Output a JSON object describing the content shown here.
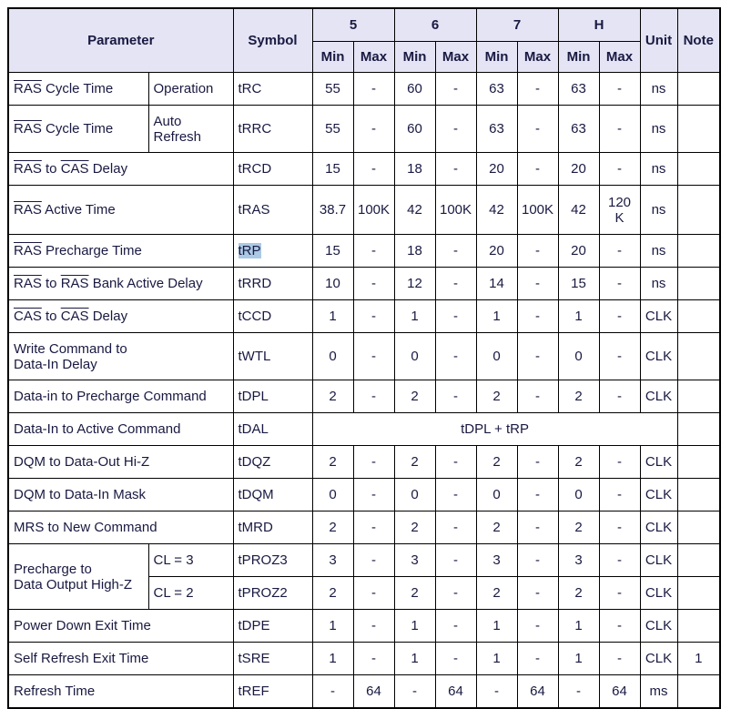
{
  "colors": {
    "header_bg": "#e4e4f4",
    "text": "#191942",
    "selection_highlight": "#aac9e5",
    "border": "#000000"
  },
  "table": {
    "headers": {
      "parameter": "Parameter",
      "symbol": "Symbol",
      "unit": "Unit",
      "note": "Note"
    },
    "speed_grades": [
      "5",
      "6",
      "7",
      "H"
    ],
    "minmax": [
      "Min",
      "Max"
    ],
    "rows": [
      {
        "param": "[RAS] Cycle Time",
        "sub": "Operation",
        "symbol": "tRC",
        "values": [
          "55",
          "-",
          "60",
          "-",
          "63",
          "-",
          "63",
          "-"
        ],
        "unit": "ns",
        "note": ""
      },
      {
        "param": "[RAS] Cycle Time",
        "sub": "Auto\nRefresh",
        "symbol": "tRRC",
        "values": [
          "55",
          "-",
          "60",
          "-",
          "63",
          "-",
          "63",
          "-"
        ],
        "unit": "ns",
        "note": ""
      },
      {
        "param": "[RAS] to [CAS] Delay",
        "symbol": "tRCD",
        "values": [
          "15",
          "-",
          "18",
          "-",
          "20",
          "-",
          "20",
          "-"
        ],
        "unit": "ns",
        "note": ""
      },
      {
        "param": "[RAS] Active Time",
        "symbol": "tRAS",
        "values": [
          "38.7",
          "100K",
          "42",
          "100K",
          "42",
          "100K",
          "42",
          "120\nK"
        ],
        "unit": "ns",
        "note": ""
      },
      {
        "param": "[RAS] Precharge Time",
        "symbol": "tRP",
        "symbol_highlight": true,
        "values": [
          "15",
          "-",
          "18",
          "-",
          "20",
          "-",
          "20",
          "-"
        ],
        "unit": "ns",
        "note": ""
      },
      {
        "param": "[RAS] to [RAS] Bank Active Delay",
        "symbol": "tRRD",
        "values": [
          "10",
          "-",
          "12",
          "-",
          "14",
          "-",
          "15",
          "-"
        ],
        "unit": "ns",
        "note": ""
      },
      {
        "param": "[CAS] to [CAS] Delay",
        "symbol": "tCCD",
        "values": [
          "1",
          "-",
          "1",
          "-",
          "1",
          "-",
          "1",
          "-"
        ],
        "unit": "CLK",
        "note": ""
      },
      {
        "param": "Write Command to\nData-In Delay",
        "symbol": "tWTL",
        "values": [
          "0",
          "-",
          "0",
          "-",
          "0",
          "-",
          "0",
          "-"
        ],
        "unit": "CLK",
        "note": ""
      },
      {
        "param": "Data-in to Precharge Command",
        "symbol": "tDPL",
        "values": [
          "2",
          "-",
          "2",
          "-",
          "2",
          "-",
          "2",
          "-"
        ],
        "unit": "CLK",
        "note": ""
      },
      {
        "param": "Data-In to Active Command",
        "symbol": "tDAL",
        "span_text": "tDPL + tRP",
        "note": ""
      },
      {
        "param": "DQM to Data-Out Hi-Z",
        "symbol": "tDQZ",
        "values": [
          "2",
          "-",
          "2",
          "-",
          "2",
          "-",
          "2",
          "-"
        ],
        "unit": "CLK",
        "note": ""
      },
      {
        "param": "DQM to Data-In Mask",
        "symbol": "tDQM",
        "values": [
          "0",
          "-",
          "0",
          "-",
          "0",
          "-",
          "0",
          "-"
        ],
        "unit": "CLK",
        "note": ""
      },
      {
        "param": "MRS to New Command",
        "symbol": "tMRD",
        "values": [
          "2",
          "-",
          "2",
          "-",
          "2",
          "-",
          "2",
          "-"
        ],
        "unit": "CLK",
        "note": ""
      },
      {
        "param": "Precharge to\nData Output High-Z",
        "param_rowspan": 2,
        "sub": "CL = 3",
        "symbol": "tPROZ3",
        "values": [
          "3",
          "-",
          "3",
          "-",
          "3",
          "-",
          "3",
          "-"
        ],
        "unit": "CLK",
        "note": ""
      },
      {
        "sub": "CL = 2",
        "symbol": "tPROZ2",
        "values": [
          "2",
          "-",
          "2",
          "-",
          "2",
          "-",
          "2",
          "-"
        ],
        "unit": "CLK",
        "note": ""
      },
      {
        "param": "Power Down Exit Time",
        "symbol": "tDPE",
        "values": [
          "1",
          "-",
          "1",
          "-",
          "1",
          "-",
          "1",
          "-"
        ],
        "unit": "CLK",
        "note": ""
      },
      {
        "param": "Self Refresh Exit Time",
        "symbol": "tSRE",
        "values": [
          "1",
          "-",
          "1",
          "-",
          "1",
          "-",
          "1",
          "-"
        ],
        "unit": "CLK",
        "note": "1"
      },
      {
        "param": "Refresh Time",
        "symbol": "tREF",
        "values": [
          "-",
          "64",
          "-",
          "64",
          "-",
          "64",
          "-",
          "64"
        ],
        "unit": "ms",
        "note": ""
      }
    ]
  }
}
